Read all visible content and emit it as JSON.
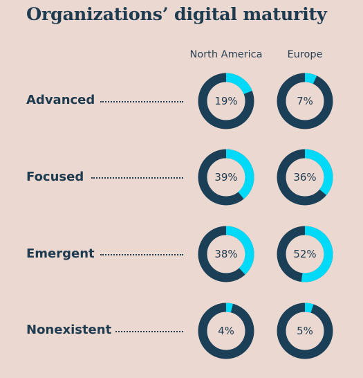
{
  "title": "Organizations’ digital maturity",
  "columns": [
    "North America",
    "Europe"
  ],
  "colors": {
    "background": "#ebd8d0",
    "ring_dark": "#1b3f56",
    "ring_accent": "#00d9f8",
    "text": "#1f3b50"
  },
  "chart_data": {
    "type": "donut-grid",
    "title": "Organizations’ digital maturity",
    "columns": [
      "North America",
      "Europe"
    ],
    "rows": [
      {
        "label": "Advanced",
        "values": [
          19,
          7
        ],
        "display": [
          "19%",
          "7%"
        ]
      },
      {
        "label": "Focused",
        "values": [
          39,
          36
        ],
        "display": [
          "39%",
          "36%"
        ]
      },
      {
        "label": "Emergent",
        "values": [
          38,
          52
        ],
        "display": [
          "38%",
          "52%"
        ]
      },
      {
        "label": "Nonexistent",
        "values": [
          4,
          5
        ],
        "display": [
          "4%",
          "5%"
        ]
      }
    ],
    "unit": "%"
  }
}
